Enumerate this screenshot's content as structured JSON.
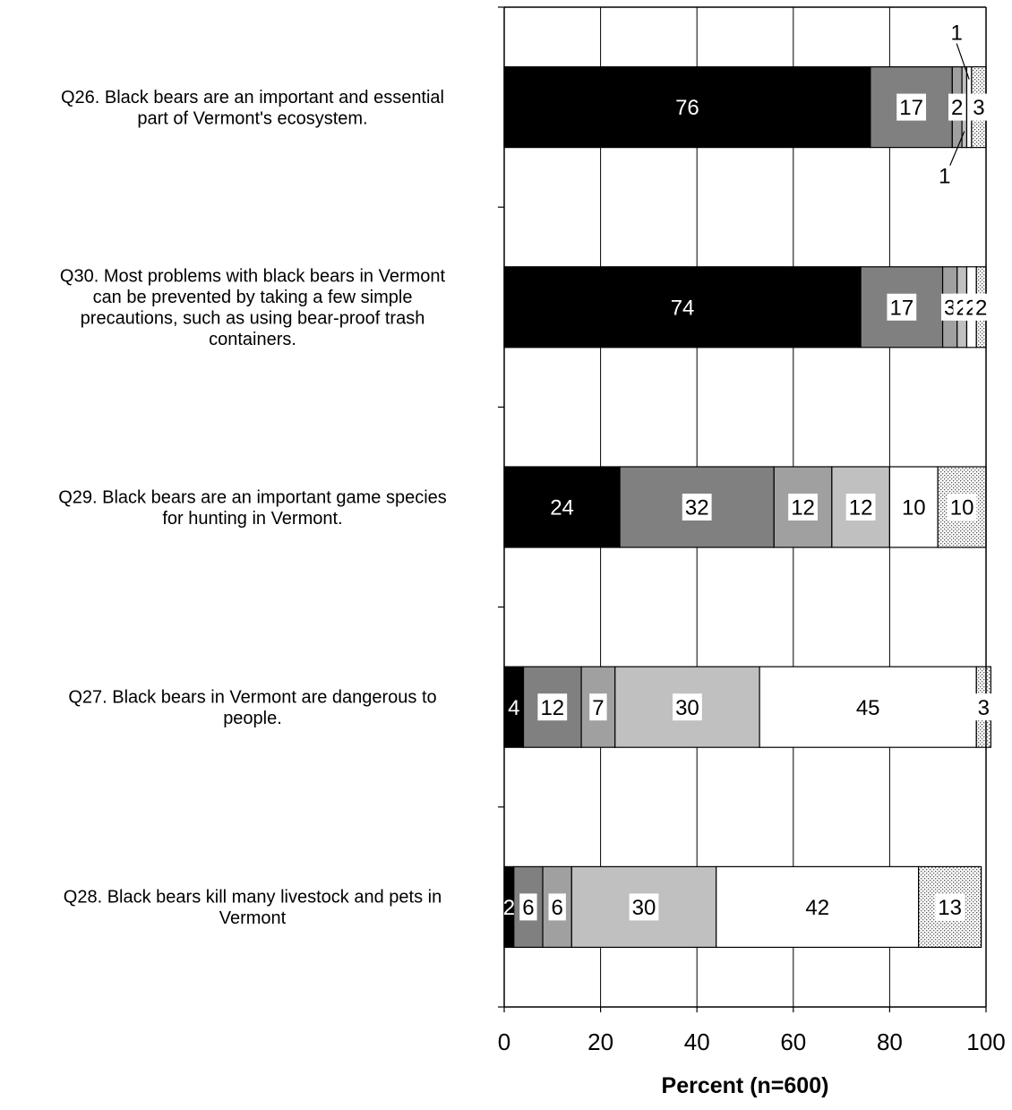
{
  "chart_data": {
    "type": "bar",
    "orientation": "horizontal",
    "stacked": true,
    "xlabel": "Percent (n=600)",
    "xlim": [
      0,
      100
    ],
    "xticks": [
      0,
      20,
      40,
      60,
      80,
      100
    ],
    "grid": true,
    "legend": "none",
    "categories": [
      "Q26. Black bears are an important and essential part of Vermont's ecosystem.",
      "Q30. Most problems with black bears in Vermont can be prevented by taking a few simple precautions, such as using bear-proof trash containers.",
      "Q29. Black bears are an important game species for hunting in Vermont.",
      "Q27. Black bears in Vermont are dangerous to people.",
      "Q28. Black bears kill many livestock and pets in Vermont"
    ],
    "category_lines": [
      [
        "Q26. Black bears are an important and essential",
        "part of Vermont's ecosystem."
      ],
      [
        "Q30. Most problems with black bears in Vermont",
        "can be prevented by taking a few simple",
        "precautions, such as using bear-proof trash",
        "containers."
      ],
      [
        "Q29. Black bears are an important game species",
        "for hunting in Vermont."
      ],
      [
        "Q27. Black bears in Vermont are dangerous to",
        "people."
      ],
      [
        "Q28. Black bears kill many livestock and pets in",
        "Vermont"
      ]
    ],
    "series": [
      {
        "fill": "#000000",
        "values": [
          76,
          74,
          24,
          4,
          2
        ]
      },
      {
        "fill": "#808080",
        "values": [
          17,
          17,
          32,
          12,
          6
        ]
      },
      {
        "fill": "#a0a0a0",
        "values": [
          2,
          3,
          12,
          7,
          6
        ]
      },
      {
        "fill": "#c0c0c0",
        "values": [
          1,
          2,
          12,
          30,
          30
        ]
      },
      {
        "fill": "#ffffff",
        "values": [
          1,
          2,
          10,
          45,
          42
        ]
      },
      {
        "fill": "dots",
        "values": [
          3,
          2,
          10,
          3,
          13
        ]
      }
    ],
    "colors": {
      "label_light": "#ffffff",
      "label_dark": "#000000",
      "axis": "#000000",
      "grid": "#000000",
      "dot": "#555555"
    }
  }
}
